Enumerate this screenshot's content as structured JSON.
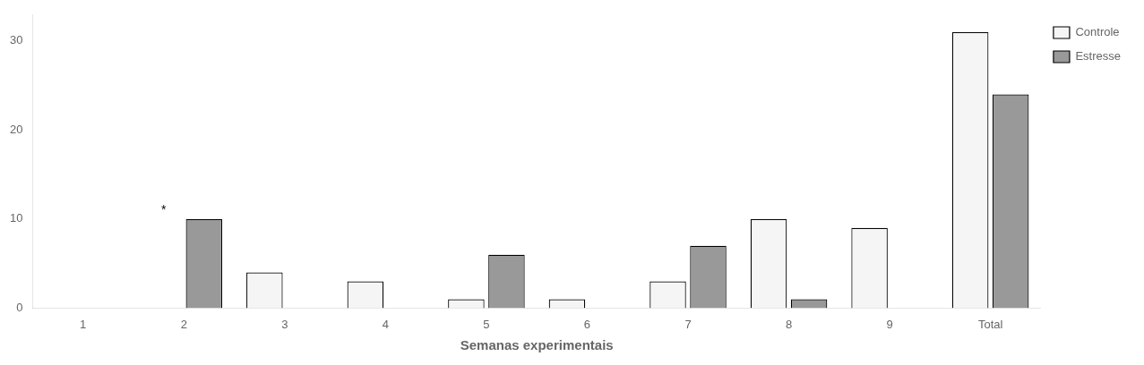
{
  "chart_data": {
    "type": "bar",
    "xlabel": "Semanas experimentais",
    "categories": [
      "1",
      "2",
      "3",
      "4",
      "5",
      "6",
      "7",
      "8",
      "9",
      "Total"
    ],
    "series": [
      {
        "name": "Controle",
        "color": "#f5f5f5",
        "values": [
          0,
          0,
          4,
          3,
          1,
          1,
          3,
          10,
          9,
          31
        ]
      },
      {
        "name": "Estresse",
        "color": "#999999",
        "values": [
          0,
          10,
          0,
          0,
          6,
          0,
          7,
          1,
          0,
          24
        ]
      }
    ],
    "annotations": [
      {
        "text": "*",
        "category": "2",
        "series": "Controle",
        "y": 10.3
      }
    ],
    "ylim": [
      0,
      33
    ],
    "yticks": [
      0,
      10,
      20,
      30
    ],
    "grid": false,
    "legend": "right"
  }
}
